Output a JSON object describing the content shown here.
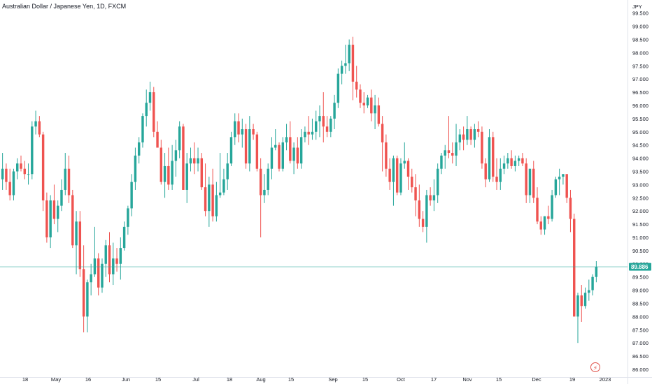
{
  "header": {
    "title": "Australian Dollar / Japanese Yen, 1D, FXCM"
  },
  "colors": {
    "up": "#26a69a",
    "down": "#ef5350",
    "price_line": "#26a69a",
    "axis_text": "#131722",
    "axis_border": "#e0e3eb"
  },
  "icons": {
    "alert": "lightning-icon"
  },
  "chart_data": {
    "type": "candlestick",
    "title": "Australian Dollar / Japanese Yen, 1D, FXCM",
    "y_axis_unit": "JPY",
    "ylim": [
      86.0,
      99.75
    ],
    "y_ticks": [
      "86.000",
      "86.500",
      "87.000",
      "87.500",
      "88.000",
      "88.500",
      "89.000",
      "89.500",
      "90.000",
      "90.500",
      "91.000",
      "91.500",
      "92.000",
      "92.500",
      "93.000",
      "93.500",
      "94.000",
      "94.500",
      "95.000",
      "95.500",
      "96.000",
      "96.500",
      "97.000",
      "97.500",
      "98.000",
      "98.500",
      "99.000",
      "99.500"
    ],
    "x_ticks": [
      "18",
      "May",
      "16",
      "Jun",
      "15",
      "Jul",
      "18",
      "Aug",
      "15",
      "Sep",
      "15",
      "Oct",
      "17",
      "Nov",
      "15",
      "Dec",
      "19",
      "2023"
    ],
    "last_price": 89.886,
    "last_price_label": "89.886",
    "alert_icon": "lightning-icon",
    "series": [
      {
        "values": [
          [
            93.2,
            94.2,
            92.8,
            93.6
          ],
          [
            93.6,
            93.8,
            92.8,
            93.1
          ],
          [
            93.1,
            93.6,
            92.4,
            92.6
          ],
          [
            92.6,
            93.6,
            92.4,
            93.5
          ],
          [
            93.5,
            94.0,
            93.2,
            93.8
          ],
          [
            93.8,
            94.1,
            93.5,
            93.6
          ],
          [
            93.6,
            93.9,
            93.2,
            93.4
          ],
          [
            93.4,
            93.8,
            93.0,
            93.4
          ],
          [
            93.4,
            95.4,
            93.2,
            95.2
          ],
          [
            95.2,
            95.8,
            94.9,
            95.4
          ],
          [
            95.4,
            95.6,
            94.8,
            94.9
          ],
          [
            94.9,
            95.0,
            92.0,
            92.4
          ],
          [
            92.4,
            92.7,
            90.8,
            91.0
          ],
          [
            91.0,
            92.6,
            90.6,
            92.4
          ],
          [
            92.4,
            93.0,
            91.5,
            91.7
          ],
          [
            91.7,
            92.4,
            91.2,
            92.2
          ],
          [
            92.2,
            93.2,
            92.0,
            92.8
          ],
          [
            92.8,
            94.2,
            92.6,
            93.6
          ],
          [
            93.6,
            94.1,
            92.3,
            92.6
          ],
          [
            92.6,
            92.8,
            90.6,
            90.7
          ],
          [
            90.7,
            92.0,
            89.6,
            91.6
          ],
          [
            91.6,
            92.0,
            89.5,
            89.8
          ],
          [
            89.8,
            90.7,
            87.4,
            88.0
          ],
          [
            88.0,
            89.4,
            87.4,
            89.3
          ],
          [
            89.3,
            90.0,
            88.8,
            89.6
          ],
          [
            89.6,
            91.4,
            89.5,
            90.2
          ],
          [
            90.2,
            90.4,
            88.8,
            89.1
          ],
          [
            89.1,
            90.2,
            88.9,
            90.0
          ],
          [
            90.0,
            90.9,
            89.5,
            90.7
          ],
          [
            90.7,
            91.2,
            89.3,
            89.6
          ],
          [
            89.6,
            90.8,
            89.2,
            90.2
          ],
          [
            90.2,
            90.6,
            89.7,
            90.0
          ],
          [
            90.0,
            91.0,
            89.4,
            90.6
          ],
          [
            90.6,
            91.6,
            90.5,
            91.4
          ],
          [
            91.4,
            92.2,
            91.1,
            92.1
          ],
          [
            92.1,
            93.4,
            91.8,
            93.1
          ],
          [
            93.1,
            94.4,
            92.8,
            94.1
          ],
          [
            94.1,
            94.8,
            93.8,
            94.6
          ],
          [
            94.6,
            95.7,
            94.4,
            95.6
          ],
          [
            95.6,
            96.6,
            95.2,
            96.1
          ],
          [
            96.1,
            96.9,
            95.8,
            96.5
          ],
          [
            96.5,
            96.7,
            94.8,
            95.0
          ],
          [
            95.0,
            95.4,
            94.4,
            94.4
          ],
          [
            94.4,
            94.7,
            93.0,
            93.1
          ],
          [
            93.1,
            94.2,
            92.5,
            93.7
          ],
          [
            93.7,
            94.4,
            92.8,
            93.0
          ],
          [
            93.0,
            94.5,
            92.8,
            93.9
          ],
          [
            93.9,
            94.7,
            93.3,
            94.3
          ],
          [
            94.3,
            95.4,
            94.0,
            95.2
          ],
          [
            95.2,
            95.3,
            92.8,
            92.8
          ],
          [
            92.8,
            94.2,
            92.3,
            93.8
          ],
          [
            93.8,
            94.4,
            93.5,
            94.0
          ],
          [
            94.0,
            94.6,
            93.4,
            93.8
          ],
          [
            93.8,
            94.4,
            93.5,
            94.0
          ],
          [
            94.0,
            94.2,
            92.8,
            92.9
          ],
          [
            92.9,
            93.8,
            91.8,
            92.0
          ],
          [
            92.0,
            93.3,
            91.4,
            93.0
          ],
          [
            93.0,
            93.6,
            91.6,
            91.8
          ],
          [
            91.8,
            93.1,
            91.6,
            92.6
          ],
          [
            92.6,
            94.2,
            92.5,
            92.7
          ],
          [
            92.7,
            93.6,
            92.6,
            93.2
          ],
          [
            93.2,
            94.2,
            92.8,
            93.8
          ],
          [
            93.8,
            95.0,
            93.7,
            94.8
          ],
          [
            94.8,
            95.7,
            94.5,
            95.4
          ],
          [
            95.4,
            95.7,
            94.6,
            94.9
          ],
          [
            94.9,
            95.5,
            94.4,
            95.1
          ],
          [
            95.1,
            95.3,
            93.6,
            93.8
          ],
          [
            93.8,
            95.6,
            93.5,
            95.1
          ],
          [
            95.1,
            95.3,
            94.7,
            94.9
          ],
          [
            94.9,
            95.0,
            93.5,
            93.6
          ],
          [
            93.6,
            94.0,
            91.0,
            92.6
          ],
          [
            92.6,
            93.4,
            92.3,
            92.8
          ],
          [
            92.8,
            93.8,
            92.6,
            93.6
          ],
          [
            93.6,
            94.8,
            93.2,
            94.4
          ],
          [
            94.4,
            95.1,
            94.3,
            94.5
          ],
          [
            94.5,
            94.6,
            93.5,
            93.6
          ],
          [
            93.6,
            94.8,
            93.5,
            94.6
          ],
          [
            94.6,
            95.3,
            94.3,
            94.8
          ],
          [
            94.8,
            95.4,
            93.8,
            93.9
          ],
          [
            93.9,
            94.6,
            93.4,
            94.4
          ],
          [
            94.4,
            94.8,
            93.6,
            93.8
          ],
          [
            93.8,
            95.1,
            93.6,
            94.8
          ],
          [
            94.8,
            95.2,
            94.6,
            95.0
          ],
          [
            95.0,
            95.6,
            94.5,
            94.9
          ],
          [
            94.9,
            95.5,
            94.7,
            95.0
          ],
          [
            95.0,
            95.8,
            94.7,
            95.4
          ],
          [
            95.4,
            96.0,
            94.8,
            95.6
          ],
          [
            95.6,
            96.5,
            94.6,
            95.2
          ],
          [
            95.2,
            95.6,
            94.8,
            95.0
          ],
          [
            95.0,
            95.6,
            94.8,
            95.5
          ],
          [
            95.5,
            96.4,
            95.1,
            96.1
          ],
          [
            96.1,
            97.4,
            95.9,
            97.2
          ],
          [
            97.2,
            97.7,
            96.8,
            97.5
          ],
          [
            97.5,
            98.3,
            97.2,
            97.6
          ],
          [
            97.6,
            98.5,
            97.3,
            98.3
          ],
          [
            98.3,
            98.6,
            96.2,
            96.9
          ],
          [
            96.9,
            97.5,
            96.3,
            96.6
          ],
          [
            96.6,
            96.8,
            95.9,
            96.1
          ],
          [
            96.1,
            96.5,
            95.7,
            96.0
          ],
          [
            96.0,
            96.4,
            95.9,
            96.3
          ],
          [
            96.3,
            96.6,
            95.4,
            95.7
          ],
          [
            95.7,
            96.4,
            95.1,
            96.0
          ],
          [
            96.0,
            96.3,
            95.2,
            95.3
          ],
          [
            95.3,
            95.6,
            93.5,
            94.6
          ],
          [
            94.6,
            94.9,
            93.3,
            93.6
          ],
          [
            93.6,
            94.0,
            92.8,
            93.1
          ],
          [
            93.1,
            94.1,
            92.2,
            94.0
          ],
          [
            94.0,
            94.1,
            92.6,
            92.7
          ],
          [
            92.7,
            94.0,
            92.6,
            93.8
          ],
          [
            93.8,
            94.6,
            93.6,
            93.9
          ],
          [
            93.9,
            94.0,
            92.8,
            93.3
          ],
          [
            93.3,
            93.6,
            92.7,
            92.9
          ],
          [
            92.9,
            93.4,
            91.8,
            92.4
          ],
          [
            92.4,
            93.0,
            91.4,
            91.7
          ],
          [
            91.7,
            92.0,
            91.2,
            91.4
          ],
          [
            91.4,
            92.8,
            90.8,
            92.6
          ],
          [
            92.6,
            92.9,
            92.2,
            92.4
          ],
          [
            92.4,
            93.2,
            92.0,
            92.6
          ],
          [
            92.6,
            93.8,
            92.3,
            93.6
          ],
          [
            93.6,
            94.2,
            93.4,
            94.1
          ],
          [
            94.1,
            94.5,
            93.6,
            94.3
          ],
          [
            94.3,
            95.6,
            94.0,
            94.2
          ],
          [
            94.2,
            94.6,
            93.8,
            94.1
          ],
          [
            94.1,
            95.3,
            93.7,
            94.6
          ],
          [
            94.6,
            95.1,
            94.3,
            94.9
          ],
          [
            94.9,
            95.2,
            94.3,
            94.7
          ],
          [
            94.7,
            95.6,
            94.5,
            95.1
          ],
          [
            95.1,
            95.2,
            94.5,
            94.7
          ],
          [
            94.7,
            95.3,
            94.4,
            95.1
          ],
          [
            95.1,
            95.4,
            94.8,
            95.0
          ],
          [
            95.0,
            95.2,
            93.6,
            93.8
          ],
          [
            93.8,
            94.0,
            92.9,
            93.2
          ],
          [
            93.2,
            95.1,
            93.1,
            94.8
          ],
          [
            94.8,
            95.0,
            93.1,
            93.3
          ],
          [
            93.3,
            94.0,
            92.8,
            93.1
          ],
          [
            93.1,
            94.0,
            92.8,
            93.6
          ],
          [
            93.6,
            94.1,
            93.4,
            93.8
          ],
          [
            93.8,
            94.2,
            93.6,
            94.0
          ],
          [
            94.0,
            94.3,
            93.6,
            93.7
          ],
          [
            93.7,
            94.1,
            93.5,
            93.9
          ],
          [
            93.9,
            94.1,
            93.7,
            94.0
          ],
          [
            94.0,
            94.2,
            93.7,
            93.8
          ],
          [
            93.8,
            94.0,
            92.3,
            92.6
          ],
          [
            92.6,
            93.6,
            92.3,
            93.6
          ],
          [
            93.6,
            93.9,
            92.3,
            92.5
          ],
          [
            92.5,
            92.9,
            91.5,
            91.6
          ],
          [
            91.6,
            91.8,
            91.1,
            91.3
          ],
          [
            91.3,
            91.8,
            91.1,
            91.8
          ],
          [
            91.8,
            92.2,
            91.5,
            91.7
          ],
          [
            91.7,
            92.8,
            91.6,
            92.6
          ],
          [
            92.6,
            93.3,
            92.5,
            93.2
          ],
          [
            93.2,
            93.6,
            92.6,
            93.3
          ],
          [
            93.3,
            93.4,
            93.0,
            93.4
          ],
          [
            93.4,
            93.4,
            92.3,
            92.5
          ],
          [
            92.5,
            92.8,
            91.2,
            91.7
          ],
          [
            91.7,
            91.9,
            88.2,
            88.0
          ],
          [
            88.0,
            88.9,
            87.0,
            88.8
          ],
          [
            88.8,
            89.2,
            87.8,
            88.4
          ],
          [
            88.4,
            89.1,
            88.3,
            88.9
          ],
          [
            88.9,
            89.4,
            88.6,
            89.0
          ],
          [
            89.0,
            89.6,
            88.8,
            89.5
          ],
          [
            89.5,
            90.1,
            89.3,
            89.886
          ]
        ]
      }
    ]
  }
}
